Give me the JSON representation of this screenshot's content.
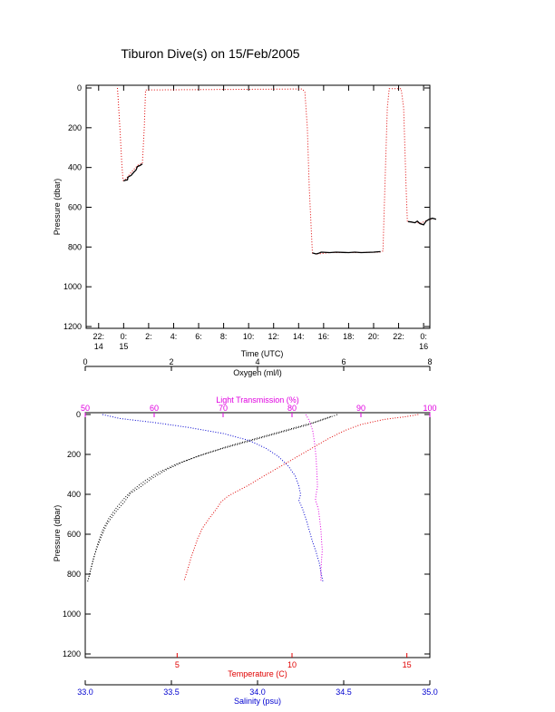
{
  "page": {
    "title": "Tiburon Dive(s) on 15/Feb/2005"
  },
  "colors": {
    "black": "#000000",
    "red": "#e00000",
    "magenta": "#e000e0",
    "blue": "#0000d0",
    "pressure_line_red": "#e00000"
  },
  "chart_data": [
    {
      "id": "time-pressure",
      "type": "line",
      "title": "Tiburon Dive(s) on 15/Feb/2005",
      "xlabel": "Time (UTC)",
      "ylabel": "Pressure (dbar)",
      "x_unit": "hours since 14/Feb 22:00 UTC shown as clock ticks",
      "xlim": [
        -1,
        26.5
      ],
      "ylim": [
        1200,
        0
      ],
      "y_reversed": true,
      "x_ticks": [
        {
          "x": 0,
          "line1": "22:",
          "line2": "14"
        },
        {
          "x": 2,
          "line1": "0:",
          "line2": "15"
        },
        {
          "x": 4,
          "line1": "2:",
          "line2": ""
        },
        {
          "x": 6,
          "line1": "4:",
          "line2": ""
        },
        {
          "x": 8,
          "line1": "6:",
          "line2": ""
        },
        {
          "x": 10,
          "line1": "8:",
          "line2": ""
        },
        {
          "x": 12,
          "line1": "10:",
          "line2": ""
        },
        {
          "x": 14,
          "line1": "12:",
          "line2": ""
        },
        {
          "x": 16,
          "line1": "14:",
          "line2": ""
        },
        {
          "x": 18,
          "line1": "16:",
          "line2": ""
        },
        {
          "x": 20,
          "line1": "18:",
          "line2": ""
        },
        {
          "x": 22,
          "line1": "20:",
          "line2": ""
        },
        {
          "x": 24,
          "line1": "22:",
          "line2": ""
        },
        {
          "x": 26,
          "line1": "0:",
          "line2": "16"
        }
      ],
      "y_ticks": [
        0,
        200,
        400,
        600,
        800,
        1000,
        1200
      ],
      "series": [
        {
          "color": "red",
          "style": "dotted",
          "points": [
            [
              1.5,
              0
            ],
            [
              1.55,
              40
            ],
            [
              1.7,
              200
            ],
            [
              1.85,
              380
            ],
            [
              1.95,
              465
            ],
            [
              2.1,
              465
            ],
            [
              2.4,
              440
            ],
            [
              2.8,
              410
            ],
            [
              3.2,
              385
            ],
            [
              3.5,
              380
            ],
            [
              3.65,
              200
            ],
            [
              3.75,
              10
            ],
            [
              8,
              8
            ],
            [
              16.3,
              5
            ],
            [
              16.5,
              20
            ],
            [
              16.7,
              200
            ],
            [
              16.85,
              500
            ],
            [
              17,
              700
            ],
            [
              17.1,
              830
            ],
            [
              17.5,
              835
            ],
            [
              18.5,
              828
            ],
            [
              20.5,
              828
            ],
            [
              22.5,
              826
            ],
            [
              22.75,
              820
            ],
            [
              22.9,
              500
            ],
            [
              23.1,
              100
            ],
            [
              23.25,
              3
            ],
            [
              24.2,
              3
            ],
            [
              24.4,
              100
            ],
            [
              24.6,
              500
            ],
            [
              24.7,
              670
            ],
            [
              25,
              675
            ],
            [
              25.8,
              680
            ],
            [
              26.3,
              665
            ],
            [
              26.6,
              660
            ]
          ]
        },
        {
          "color": "black",
          "style": "solid",
          "segments": [
            [
              [
                2.0,
                468
              ],
              [
                2.1,
                465
              ],
              [
                2.3,
                462
              ],
              [
                2.35,
                448
              ],
              [
                2.6,
                440
              ],
              [
                2.8,
                425
              ],
              [
                3.0,
                412
              ],
              [
                3.1,
                395
              ],
              [
                3.3,
                390
              ],
              [
                3.5,
                382
              ]
            ],
            [
              [
                17.1,
                830
              ],
              [
                17.4,
                835
              ],
              [
                17.6,
                832
              ],
              [
                17.8,
                826
              ],
              [
                18.5,
                828
              ],
              [
                19.0,
                826
              ],
              [
                20.0,
                828
              ],
              [
                20.5,
                826
              ],
              [
                21.0,
                828
              ],
              [
                22.0,
                826
              ],
              [
                22.55,
                823
              ]
            ],
            [
              [
                24.75,
                672
              ],
              [
                25.0,
                674
              ],
              [
                25.3,
                678
              ],
              [
                25.5,
                670
              ],
              [
                25.7,
                682
              ],
              [
                26.0,
                688
              ],
              [
                26.2,
                670
              ],
              [
                26.4,
                662
              ],
              [
                26.7,
                655
              ],
              [
                27.0,
                660
              ]
            ]
          ]
        }
      ]
    },
    {
      "id": "profiles",
      "type": "scatter",
      "ylabel": "Pressure (dbar)",
      "ylim": [
        1200,
        0
      ],
      "y_reversed": true,
      "y_ticks": [
        0,
        200,
        400,
        600,
        800,
        1000,
        1200
      ],
      "axes": {
        "oxygen": {
          "label": "Oxygen (ml/l)",
          "position": "top",
          "range": [
            0,
            8
          ],
          "ticks": [
            0,
            2,
            4,
            6,
            8
          ],
          "color": "black"
        },
        "light_transmission": {
          "label": "Light Transmission (%)",
          "position": "top",
          "range": [
            50,
            100
          ],
          "ticks": [
            50,
            60,
            70,
            80,
            90,
            100
          ],
          "color": "magenta"
        },
        "temperature": {
          "label": "Temperature (C)",
          "position": "bottom",
          "range": [
            1,
            16
          ],
          "ticks": [
            5,
            10,
            15
          ],
          "color": "red"
        },
        "salinity": {
          "label": "Salinity (psu)",
          "position": "bottom",
          "range": [
            33.0,
            35.0
          ],
          "ticks": [
            "33.0",
            "33.5",
            "34.0",
            "34.5",
            "35.0"
          ],
          "tick_values": [
            33.0,
            33.5,
            34.0,
            34.5,
            35.0
          ],
          "color": "blue"
        }
      },
      "series": [
        {
          "variable": "oxygen",
          "color": "black",
          "points": [
            [
              5.85,
              0
            ],
            [
              5.6,
              20
            ],
            [
              5.2,
              50
            ],
            [
              4.7,
              80
            ],
            [
              4.2,
              110
            ],
            [
              3.7,
              140
            ],
            [
              3.2,
              170
            ],
            [
              2.6,
              210
            ],
            [
              2.1,
              250
            ],
            [
              1.7,
              290
            ],
            [
              1.4,
              330
            ],
            [
              1.15,
              370
            ],
            [
              0.95,
              410
            ],
            [
              0.75,
              460
            ],
            [
              0.55,
              520
            ],
            [
              0.4,
              580
            ],
            [
              0.3,
              640
            ],
            [
              0.22,
              700
            ],
            [
              0.15,
              760
            ],
            [
              0.08,
              820
            ],
            [
              0.05,
              840
            ]
          ],
          "points_b": [
            [
              5.7,
              10
            ],
            [
              5.3,
              40
            ],
            [
              4.8,
              70
            ],
            [
              4.3,
              100
            ],
            [
              3.8,
              130
            ],
            [
              3.3,
              160
            ],
            [
              2.8,
              195
            ],
            [
              2.3,
              235
            ],
            [
              1.9,
              275
            ],
            [
              1.55,
              320
            ],
            [
              1.3,
              360
            ],
            [
              1.05,
              395
            ],
            [
              0.9,
              440
            ],
            [
              0.7,
              490
            ],
            [
              0.5,
              550
            ],
            [
              0.38,
              610
            ],
            [
              0.27,
              670
            ],
            [
              0.18,
              730
            ],
            [
              0.11,
              790
            ],
            [
              0.06,
              835
            ]
          ]
        },
        {
          "variable": "light_transmission",
          "color": "magenta",
          "points": [
            [
              82,
              0
            ],
            [
              82.5,
              30
            ],
            [
              83,
              80
            ],
            [
              83.3,
              150
            ],
            [
              83.5,
              220
            ],
            [
              83.6,
              290
            ],
            [
              83.7,
              360
            ],
            [
              83.5,
              400
            ],
            [
              83.4,
              430
            ],
            [
              83.8,
              470
            ],
            [
              84,
              520
            ],
            [
              84.2,
              580
            ],
            [
              84.3,
              640
            ],
            [
              84.4,
              680
            ],
            [
              84.3,
              720
            ],
            [
              84.2,
              780
            ],
            [
              84.2,
              835
            ]
          ]
        },
        {
          "variable": "temperature",
          "color": "red",
          "points": [
            [
              15.5,
              0
            ],
            [
              15,
              10
            ],
            [
              14,
              25
            ],
            [
              13,
              50
            ],
            [
              12.3,
              80
            ],
            [
              11.6,
              120
            ],
            [
              11,
              160
            ],
            [
              10.4,
              200
            ],
            [
              9.8,
              240
            ],
            [
              9.2,
              280
            ],
            [
              8.6,
              320
            ],
            [
              8.1,
              355
            ],
            [
              7.6,
              385
            ],
            [
              7.2,
              410
            ],
            [
              6.9,
              440
            ],
            [
              6.7,
              475
            ],
            [
              6.4,
              520
            ],
            [
              6.1,
              570
            ],
            [
              5.9,
              620
            ],
            [
              5.75,
              670
            ],
            [
              5.6,
              720
            ],
            [
              5.45,
              780
            ],
            [
              5.3,
              835
            ]
          ]
        },
        {
          "variable": "salinity",
          "color": "blue",
          "points": [
            [
              33.1,
              0
            ],
            [
              33.2,
              20
            ],
            [
              33.4,
              40
            ],
            [
              33.6,
              65
            ],
            [
              33.8,
              95
            ],
            [
              33.95,
              130
            ],
            [
              34.05,
              170
            ],
            [
              34.12,
              210
            ],
            [
              34.18,
              260
            ],
            [
              34.22,
              310
            ],
            [
              34.24,
              360
            ],
            [
              34.25,
              400
            ],
            [
              34.24,
              430
            ],
            [
              34.26,
              470
            ],
            [
              34.28,
              520
            ],
            [
              34.3,
              580
            ],
            [
              34.32,
              640
            ],
            [
              34.34,
              690
            ],
            [
              34.36,
              750
            ],
            [
              34.37,
              800
            ],
            [
              34.38,
              840
            ]
          ]
        }
      ]
    }
  ]
}
